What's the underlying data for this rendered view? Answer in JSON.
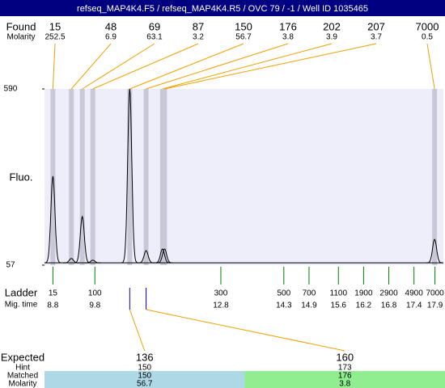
{
  "header": {
    "title": "refseq_MAP4K4.F5 / refseq_MAP4K4.R5 / OVC 79 / -1 / Well ID 1035465"
  },
  "found": {
    "label": "Found",
    "molarity_label": "Molarity",
    "peaks": [
      {
        "size": 15,
        "molarity": 252.5,
        "time": 8.8,
        "height": 326
      },
      {
        "size": 48,
        "molarity": 6.9,
        "time": 9.24,
        "height": 77
      },
      {
        "size": 69,
        "molarity": 63.1,
        "time": 9.5,
        "height": 204
      },
      {
        "size": 87,
        "molarity": 3.2,
        "time": 9.75,
        "height": 72
      },
      {
        "size": 150,
        "molarity": 56.7,
        "time": 10.63,
        "height": 590
      },
      {
        "size": 176,
        "molarity": 3.8,
        "time": 11.02,
        "height": 101
      },
      {
        "size": 202,
        "molarity": 3.9,
        "time": 11.41,
        "height": 106
      },
      {
        "size": 207,
        "molarity": 3.7,
        "time": 11.46,
        "height": 106
      },
      {
        "size": 7000,
        "molarity": 0.5,
        "time": 17.89,
        "height": 135
      }
    ]
  },
  "trace": {
    "y_label": "Fluo.",
    "ylim": [
      57,
      590
    ],
    "yticks": [
      57,
      590
    ],
    "xlim": [
      8.6,
      18.1
    ],
    "baseline": 64,
    "line_color": "#000000",
    "band_color": "#c8c8d8",
    "background": "#eeeefa"
  },
  "ladder": {
    "label": "Ladder",
    "time_label": "Mig. time",
    "color": "#008000",
    "items": [
      {
        "size": 15,
        "time": 8.8
      },
      {
        "size": 100,
        "time": 9.8
      },
      {
        "size": 300,
        "time": 12.8
      },
      {
        "size": 500,
        "time": 14.3
      },
      {
        "size": 700,
        "time": 14.9
      },
      {
        "size": 1100,
        "time": 15.6
      },
      {
        "size": 1900,
        "time": 16.2
      },
      {
        "size": 2900,
        "time": 16.8
      },
      {
        "size": 4900,
        "time": 17.4
      },
      {
        "size": 7000,
        "time": 17.9
      }
    ]
  },
  "expected": {
    "label": "Expected",
    "hint_label": "Hint",
    "matched_label": "Matched",
    "molarity_label": "Molarity",
    "items": [
      {
        "size": 136,
        "hint": 150,
        "matched": 150,
        "molarity": 56.7,
        "color": "#add8e6"
      },
      {
        "size": 160,
        "hint": 173,
        "matched": 176,
        "molarity": 3.8,
        "color": "#90ee90"
      }
    ]
  }
}
